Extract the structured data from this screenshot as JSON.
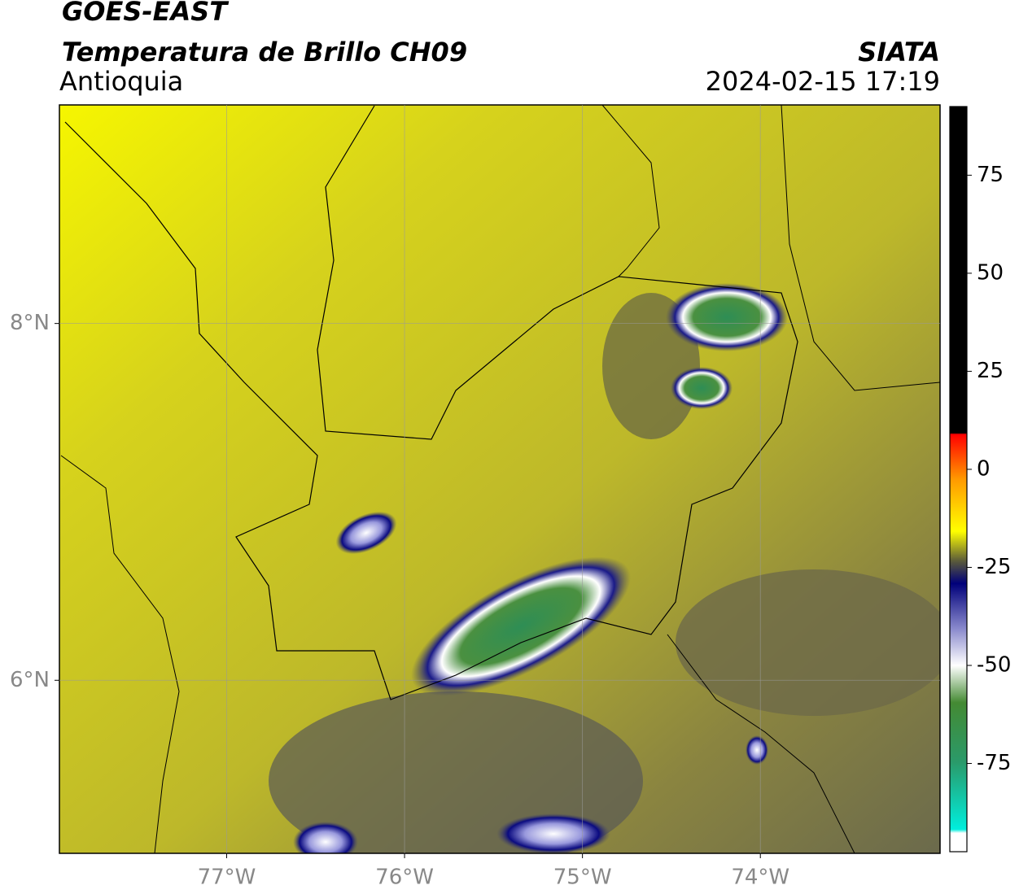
{
  "header": {
    "title": "GOES-EAST",
    "subtitle": "Temperatura de Brillo CH09",
    "region": "Antioquia",
    "source": "SIATA",
    "datetime": "2024-02-15 17:19"
  },
  "map": {
    "xlim": [
      -77.94,
      -72.99
    ],
    "ylim": [
      5.03,
      9.225
    ],
    "xticks": [
      {
        "value": -77,
        "label": "77°W"
      },
      {
        "value": -76,
        "label": "76°W"
      },
      {
        "value": -75,
        "label": "75°W"
      },
      {
        "value": -74,
        "label": "74°W"
      }
    ],
    "yticks": [
      {
        "value": 8,
        "label": "8°N"
      },
      {
        "value": 6,
        "label": "6°N"
      }
    ],
    "grid": true
  },
  "colorbar": {
    "lim": [
      -97.5,
      92.5
    ],
    "ticks": [
      75,
      50,
      25,
      0,
      -25,
      -50,
      -75
    ]
  }
}
